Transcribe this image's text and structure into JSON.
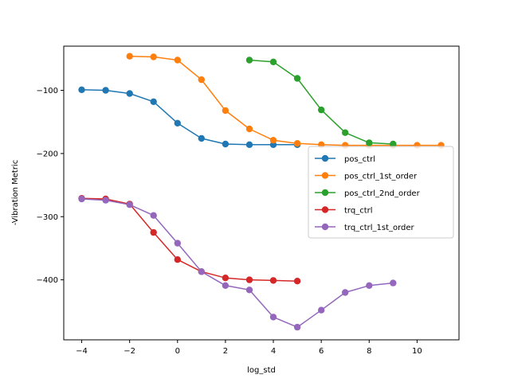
{
  "chart_data": {
    "type": "line",
    "title": "",
    "xlabel": "log_std",
    "ylabel": "-Vibration Metric",
    "xlim": [
      -4.75,
      11.75
    ],
    "ylim": [
      -495,
      -30
    ],
    "xticks": [
      -4,
      -2,
      0,
      2,
      4,
      6,
      8,
      10
    ],
    "yticks": [
      -100,
      -200,
      -300,
      -400
    ],
    "ytick_labels": [
      "−100",
      "−200",
      "−300",
      "−400"
    ],
    "xtick_labels": [
      "−4",
      "−2",
      "0",
      "2",
      "4",
      "6",
      "8",
      "10"
    ],
    "grid": false,
    "legend_position": "center-right",
    "series": [
      {
        "name": "pos_ctrl",
        "color": "#1f77b4",
        "x": [
          -4,
          -3,
          -2,
          -1,
          0,
          1,
          2,
          3,
          4,
          5
        ],
        "y": [
          -99,
          -100,
          -105,
          -118,
          -152,
          -176,
          -185,
          -186,
          -186,
          -186
        ]
      },
      {
        "name": "pos_ctrl_1st_order",
        "color": "#ff7f0e",
        "x": [
          -2,
          -1,
          0,
          1,
          2,
          3,
          4,
          5,
          6,
          7,
          8,
          9,
          10,
          11
        ],
        "y": [
          -46,
          -47,
          -52,
          -83,
          -132,
          -161,
          -179,
          -184,
          -186,
          -187,
          -187,
          -187,
          -187,
          -187
        ]
      },
      {
        "name": "pos_ctrl_2nd_order",
        "color": "#2ca02c",
        "x": [
          3,
          4,
          5,
          6,
          7,
          8,
          9
        ],
        "y": [
          -52,
          -55,
          -81,
          -131,
          -167,
          -183,
          -185
        ]
      },
      {
        "name": "trq_ctrl",
        "color": "#d62728",
        "x": [
          -4,
          -3,
          -2,
          -1,
          0,
          1,
          2,
          3,
          4,
          5
        ],
        "y": [
          -271,
          -272,
          -280,
          -325,
          -368,
          -387,
          -397,
          -400,
          -401,
          -402
        ]
      },
      {
        "name": "trq_ctrl_1st_order",
        "color": "#9467bd",
        "x": [
          -4,
          -3,
          -2,
          -1,
          0,
          1,
          2,
          3,
          4,
          5,
          6,
          7,
          8,
          9
        ],
        "y": [
          -272,
          -274,
          -281,
          -298,
          -342,
          -387,
          -409,
          -416,
          -459,
          -475,
          -448,
          -420,
          -409,
          -405
        ]
      }
    ]
  }
}
